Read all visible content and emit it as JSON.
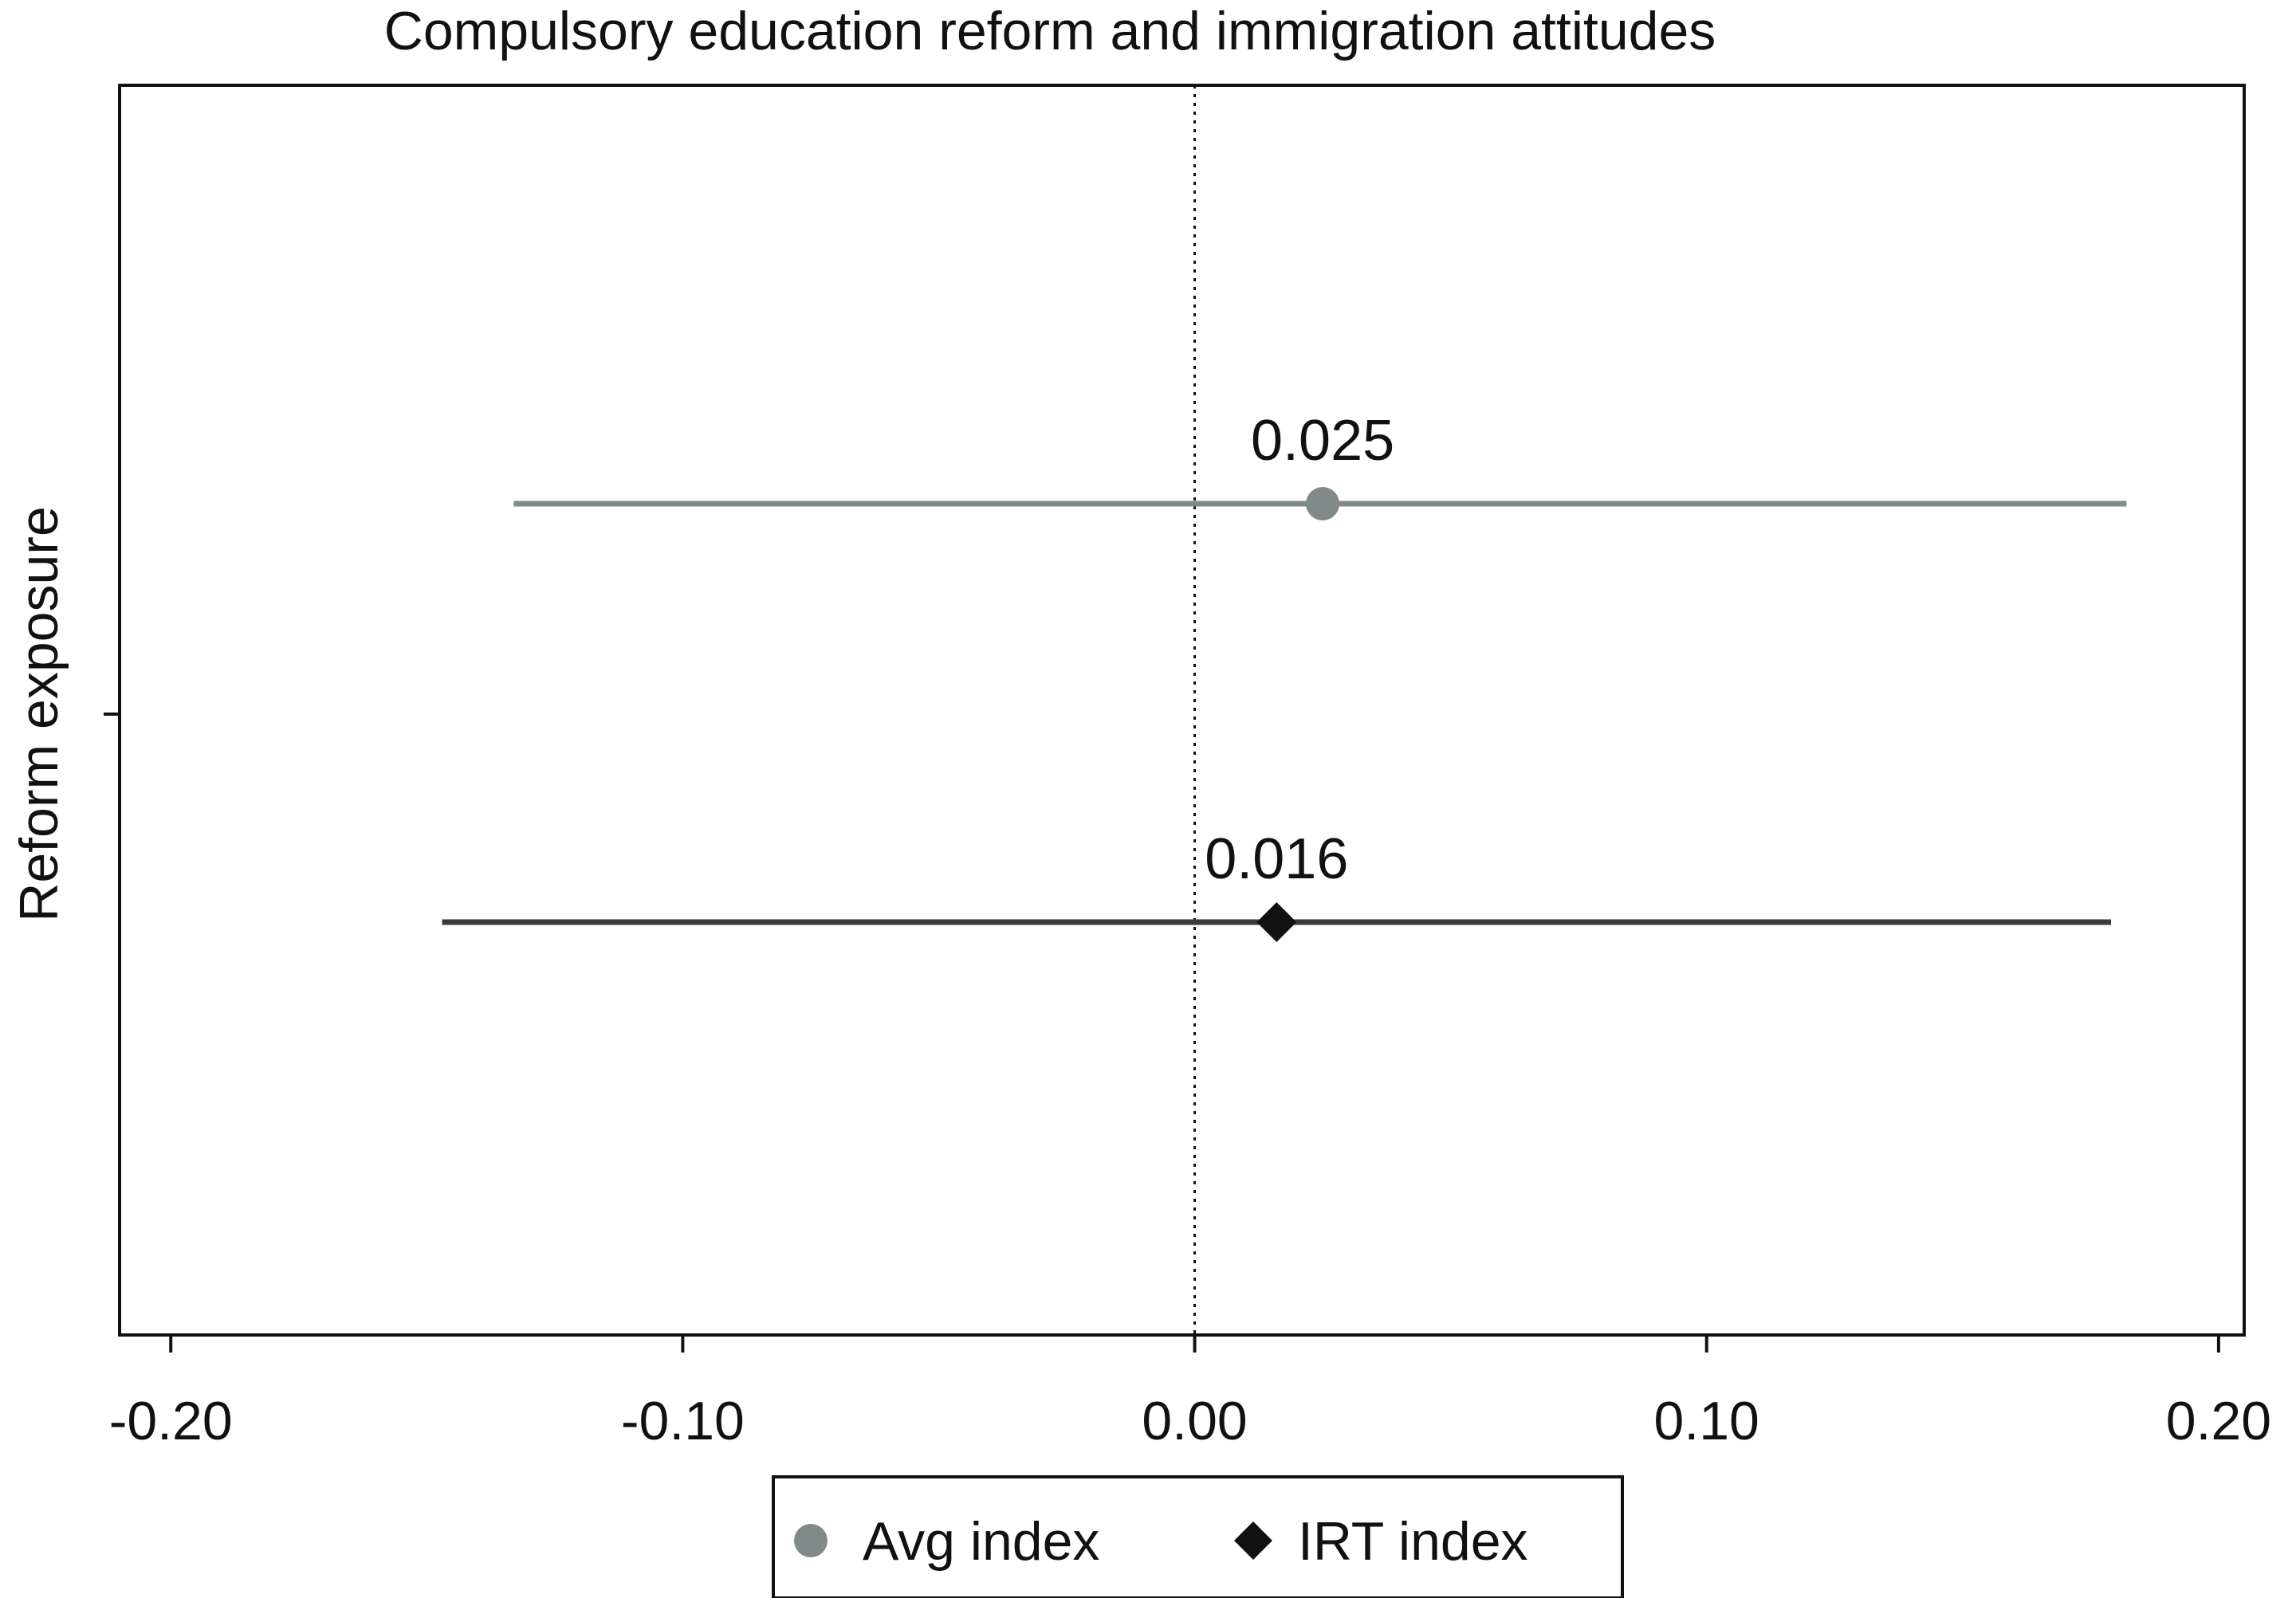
{
  "chart_data": {
    "type": "scatter",
    "subtype": "coefficient-plot-with-confidence-intervals",
    "title": "Compulsory education reform and immigration attitudes",
    "xlabel": "",
    "ylabel": "Reform exposure",
    "xlim": [
      -0.21,
      0.205
    ],
    "xticks": [
      -0.2,
      -0.1,
      0.0,
      0.1,
      0.2
    ],
    "xtick_labels": [
      "-0.20",
      "-0.10",
      "0.00",
      "0.10",
      "0.20"
    ],
    "reference_line": {
      "x": 0.0,
      "style": "dotted"
    },
    "grid": false,
    "legend_position": "bottom",
    "series": [
      {
        "name": "Avg index",
        "marker": "circle",
        "color": "#808a88",
        "estimate": 0.025,
        "ci_low": -0.133,
        "ci_high": 0.182,
        "label": "0.025"
      },
      {
        "name": "IRT index",
        "marker": "diamond",
        "color": "#111111",
        "line_color": "#3a3a3a",
        "estimate": 0.016,
        "ci_low": -0.147,
        "ci_high": 0.179,
        "label": "0.016"
      }
    ]
  }
}
